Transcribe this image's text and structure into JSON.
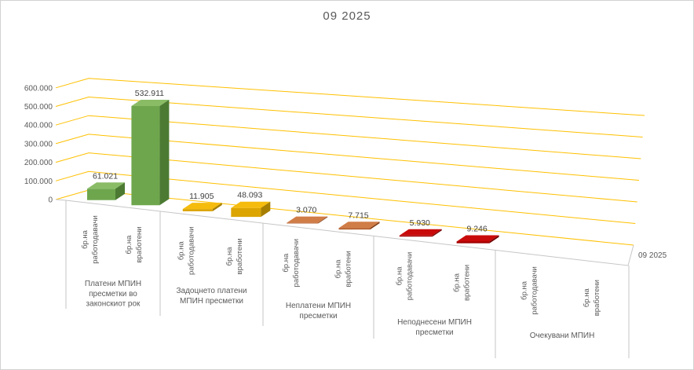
{
  "title": "09 2025",
  "chart_data": {
    "type": "bar",
    "projection": "3d-column",
    "title": "09 2025",
    "series_depth_label": "09 2025",
    "grid": "on",
    "legend": "none",
    "value_axis": {
      "min": 0,
      "max": 600000,
      "step": 100000,
      "tick_labels": [
        "0",
        "100.000",
        "200.000",
        "300.000",
        "400.000",
        "500.000",
        "600.000"
      ]
    },
    "categories": [
      "Платени МПИН пресметки во законскиот рок",
      "Задоцнето платени МПИН пресметки",
      "Неплатени МПИН пресметки",
      "Неподнесени МПИН пресметки",
      "Очекувани МПИН"
    ],
    "groups": [
      {
        "label": "Платени МПИН пресметки во законскиот рок",
        "label_lines": [
          "Платени МПИН",
          "пресметки во",
          "законскиот рок"
        ],
        "color": "green",
        "bars": [
          {
            "label": "бр.на работодавачи",
            "label_lines": [
              "бр.на",
              "работодавачи"
            ],
            "value": 61021,
            "value_label": "61.021"
          },
          {
            "label": "бр.на вработени",
            "label_lines": [
              "бр.на",
              "вработени"
            ],
            "value": 532911,
            "value_label": "532.911"
          }
        ]
      },
      {
        "label": "Задоцнето платени МПИН пресметки",
        "label_lines": [
          "Задоцнето платени",
          "МПИН пресметки"
        ],
        "color": "gold",
        "bars": [
          {
            "label": "бр.на работодавачи",
            "label_lines": [
              "бр.на",
              "работодавачи"
            ],
            "value": 11905,
            "value_label": "11.905"
          },
          {
            "label": "бр.на вработени",
            "label_lines": [
              "бр.на",
              "вработени"
            ],
            "value": 48093,
            "value_label": "48.093"
          }
        ]
      },
      {
        "label": "Неплатени МПИН пресметки",
        "label_lines": [
          "Неплатени МПИН",
          "пресметки"
        ],
        "color": "orange",
        "bars": [
          {
            "label": "бр.на работодавачи",
            "label_lines": [
              "бр.на",
              "работодавачи"
            ],
            "value": 3070,
            "value_label": "3.070"
          },
          {
            "label": "бр.на вработени",
            "label_lines": [
              "бр.на",
              "вработени"
            ],
            "value": 7715,
            "value_label": "7.715"
          }
        ]
      },
      {
        "label": "Неподнесени МПИН пресметки",
        "label_lines": [
          "Неподнесени МПИН",
          "пресметки"
        ],
        "color": "red",
        "bars": [
          {
            "label": "бр.на работодавачи",
            "label_lines": [
              "бр.на",
              "работодавачи"
            ],
            "value": 5930,
            "value_label": "5.930"
          },
          {
            "label": "бр.на вработени",
            "label_lines": [
              "бр.на",
              "вработени"
            ],
            "value": 9246,
            "value_label": "9.246"
          }
        ]
      },
      {
        "label": "Очекувани МПИН",
        "label_lines": [
          "Очекувани МПИН"
        ],
        "color": "none",
        "bars": [
          {
            "label": "бр.на работодавачи",
            "label_lines": [
              "бр.на",
              "работодавачи"
            ],
            "value": null,
            "value_label": ""
          },
          {
            "label": "бр.на вработени",
            "label_lines": [
              "бр.на",
              "вработени"
            ],
            "value": null,
            "value_label": ""
          }
        ]
      }
    ],
    "palette": {
      "green": {
        "front": "#6EA64D",
        "top": "#8ABC66",
        "side": "#4C7A33"
      },
      "gold": {
        "front": "#DCA500",
        "top": "#F5BC0E",
        "side": "#A67F00"
      },
      "orange": {
        "front": "#B05521",
        "top": "#D07D47",
        "side": "#7E3B13"
      },
      "red": {
        "front": "#A00000",
        "top": "#C90A0A",
        "side": "#700000"
      }
    },
    "colors": {
      "gridline": "#FFC000",
      "axis_text": "#595959",
      "value_label": "#3F3F3F",
      "floor_line": "#C6C6C6"
    }
  }
}
